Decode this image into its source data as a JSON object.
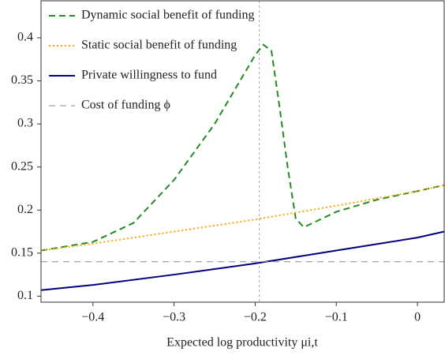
{
  "chart_data": {
    "type": "line",
    "xlabel": "Expected log productivity μi,t",
    "xlim": [
      -0.464,
      0.033
    ],
    "ylim": [
      0.093,
      0.443
    ],
    "xticks": [
      {
        "value": -0.4,
        "label": "−0.4"
      },
      {
        "value": -0.3,
        "label": "−0.3"
      },
      {
        "value": -0.2,
        "label": "−0.2"
      },
      {
        "value": -0.1,
        "label": "−0.1"
      },
      0
    ],
    "yticks": [
      0.1,
      0.15,
      0.2,
      0.25,
      0.3,
      0.35,
      0.4
    ],
    "vline": -0.195,
    "legend": "upper left",
    "series": [
      {
        "name": "Dynamic social benefit of funding",
        "color": "#228b22",
        "dash": "8,5",
        "x": [
          -0.464,
          -0.4,
          -0.35,
          -0.3,
          -0.25,
          -0.2,
          -0.19,
          -0.18,
          -0.17,
          -0.16,
          -0.15,
          -0.14,
          -0.1,
          -0.05,
          0,
          0.033
        ],
        "values": [
          0.153,
          0.163,
          0.185,
          0.235,
          0.3,
          0.38,
          0.392,
          0.385,
          0.32,
          0.25,
          0.19,
          0.18,
          0.198,
          0.212,
          0.222,
          0.229
        ]
      },
      {
        "name": "Static social benefit of funding",
        "color": "#ffa500",
        "dash": "2,3",
        "x": [
          -0.464,
          -0.4,
          -0.3,
          -0.2,
          -0.1,
          0,
          0.033
        ],
        "values": [
          0.153,
          0.161,
          0.175,
          0.189,
          0.205,
          0.222,
          0.229
        ]
      },
      {
        "name": "Private willingness to fund",
        "color": "#000080",
        "dash": "none",
        "x": [
          -0.464,
          -0.4,
          -0.3,
          -0.2,
          -0.1,
          0,
          0.033
        ],
        "values": [
          0.107,
          0.113,
          0.125,
          0.138,
          0.153,
          0.168,
          0.175
        ]
      },
      {
        "name": "Cost of funding ϕ",
        "color": "#888888",
        "dash": "8,6",
        "x": [
          -0.464,
          0.033
        ],
        "values": [
          0.14,
          0.14
        ]
      }
    ]
  }
}
